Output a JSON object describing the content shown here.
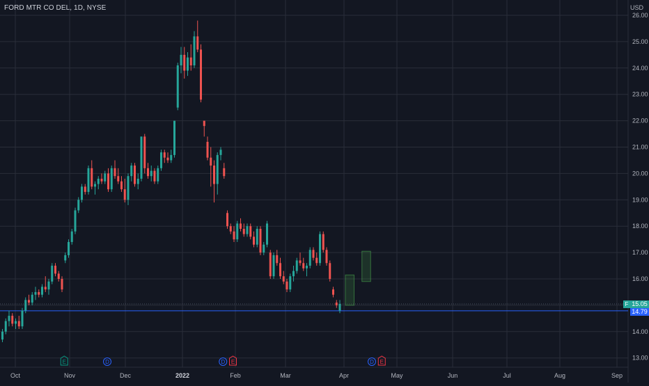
{
  "chart_title": "FORD MTR CO DEL, 1D, NYSE",
  "currency": "USD",
  "price_ticker": "F",
  "last_price": "15.05",
  "horizontal_line_price": "14.79",
  "colors": {
    "background": "#131722",
    "grid": "#2a2e39",
    "up": "#26a69a",
    "down": "#ef5350",
    "blue_line": "#2962ff",
    "earnings_marker": "#089981",
    "dividend_marker": "#2962ff",
    "earnings_marker_red": "#f23645"
  },
  "chart_data": {
    "type": "candlestick",
    "y_axis": {
      "min": 12.8,
      "max": 26.1,
      "ticks": [
        "26.00",
        "25.00",
        "24.00",
        "23.00",
        "22.00",
        "21.00",
        "20.00",
        "19.00",
        "18.00",
        "17.00",
        "16.00",
        "15.00",
        "14.00",
        "13.00"
      ]
    },
    "x_axis": {
      "ticks": [
        "Oct",
        "Nov",
        "Dec",
        "2022",
        "Feb",
        "Mar",
        "Apr",
        "May",
        "Jun",
        "Jul",
        "Aug",
        "Sep"
      ],
      "bold_tick": "2022"
    },
    "candles": [
      [
        13.7,
        14.1,
        13.6,
        14.0
      ],
      [
        14.0,
        14.5,
        13.9,
        14.4
      ],
      [
        14.4,
        14.8,
        14.2,
        14.6
      ],
      [
        14.6,
        14.7,
        14.2,
        14.3
      ],
      [
        14.3,
        14.5,
        14.1,
        14.4
      ],
      [
        14.4,
        14.6,
        14.1,
        14.2
      ],
      [
        14.2,
        14.9,
        14.1,
        14.8
      ],
      [
        14.8,
        15.3,
        14.7,
        15.2
      ],
      [
        15.2,
        15.4,
        15.0,
        15.1
      ],
      [
        15.1,
        15.5,
        15.0,
        15.4
      ],
      [
        15.4,
        15.7,
        15.2,
        15.5
      ],
      [
        15.5,
        15.6,
        15.3,
        15.4
      ],
      [
        15.4,
        15.8,
        15.3,
        15.7
      ],
      [
        15.7,
        16.1,
        15.5,
        15.6
      ],
      [
        15.6,
        16.0,
        15.4,
        15.9
      ],
      [
        15.9,
        16.6,
        15.8,
        16.5
      ],
      [
        16.5,
        16.6,
        16.1,
        16.2
      ],
      [
        16.2,
        16.3,
        15.9,
        16.0
      ],
      [
        16.0,
        16.1,
        15.5,
        15.6
      ],
      [
        16.7,
        17.0,
        16.6,
        16.9
      ],
      [
        16.9,
        17.5,
        16.8,
        17.4
      ],
      [
        17.4,
        17.9,
        17.3,
        17.8
      ],
      [
        17.8,
        18.7,
        17.7,
        18.6
      ],
      [
        18.6,
        19.1,
        18.5,
        19.0
      ],
      [
        19.0,
        19.6,
        18.9,
        19.5
      ],
      [
        19.5,
        19.6,
        19.2,
        19.3
      ],
      [
        19.3,
        20.3,
        19.2,
        20.2
      ],
      [
        20.2,
        20.5,
        19.4,
        19.5
      ],
      [
        19.5,
        19.7,
        19.2,
        19.6
      ],
      [
        19.6,
        19.9,
        19.4,
        19.8
      ],
      [
        19.8,
        20.0,
        19.6,
        19.7
      ],
      [
        19.7,
        20.1,
        19.6,
        20.0
      ],
      [
        20.0,
        20.2,
        19.3,
        19.4
      ],
      [
        19.4,
        20.3,
        19.3,
        20.2
      ],
      [
        20.2,
        20.5,
        19.8,
        19.9
      ],
      [
        19.9,
        20.2,
        19.6,
        19.7
      ],
      [
        19.7,
        19.9,
        19.3,
        19.4
      ],
      [
        19.4,
        19.8,
        18.9,
        19.0
      ],
      [
        19.0,
        20.0,
        18.8,
        19.9
      ],
      [
        19.9,
        20.4,
        19.7,
        20.3
      ],
      [
        20.3,
        20.4,
        19.5,
        19.6
      ],
      [
        19.6,
        20.0,
        19.4,
        19.8
      ],
      [
        19.8,
        21.4,
        19.7,
        21.4
      ],
      [
        21.4,
        21.5,
        20.0,
        20.2
      ],
      [
        20.2,
        20.4,
        19.8,
        19.9
      ],
      [
        19.9,
        20.3,
        19.7,
        20.1
      ],
      [
        20.1,
        20.2,
        19.6,
        19.7
      ],
      [
        19.7,
        20.3,
        19.6,
        20.2
      ],
      [
        20.2,
        20.9,
        20.1,
        20.8
      ],
      [
        20.8,
        20.9,
        20.4,
        20.6
      ],
      [
        20.6,
        20.8,
        20.4,
        20.5
      ],
      [
        20.5,
        20.9,
        20.4,
        20.7
      ],
      [
        20.7,
        22.0,
        20.6,
        22.0
      ],
      [
        22.5,
        24.2,
        22.4,
        24.1
      ],
      [
        24.1,
        24.8,
        23.8,
        24.5
      ],
      [
        24.5,
        24.8,
        23.6,
        23.9
      ],
      [
        23.9,
        24.6,
        23.7,
        24.4
      ],
      [
        24.4,
        24.9,
        23.9,
        24.1
      ],
      [
        24.1,
        25.4,
        24.0,
        25.2
      ],
      [
        25.2,
        25.8,
        24.6,
        24.7
      ],
      [
        24.7,
        24.9,
        22.7,
        22.8
      ],
      [
        22.0,
        22.0,
        21.4,
        21.8
      ],
      [
        21.2,
        21.4,
        20.5,
        20.6
      ],
      [
        20.6,
        21.0,
        19.5,
        20.3
      ],
      [
        20.3,
        20.5,
        18.9,
        19.6
      ],
      [
        19.6,
        20.8,
        19.2,
        20.7
      ],
      [
        20.7,
        21.0,
        20.5,
        20.9
      ],
      [
        20.2,
        20.4,
        19.8,
        19.9
      ],
      [
        18.5,
        18.6,
        17.9,
        18.0
      ],
      [
        18.0,
        18.1,
        17.7,
        17.8
      ],
      [
        17.8,
        18.0,
        17.4,
        17.5
      ],
      [
        17.5,
        18.2,
        17.4,
        18.1
      ],
      [
        18.1,
        18.3,
        17.8,
        17.9
      ],
      [
        17.9,
        18.1,
        17.6,
        17.7
      ],
      [
        17.7,
        18.1,
        17.6,
        18.0
      ],
      [
        18.0,
        18.1,
        17.5,
        17.6
      ],
      [
        17.6,
        17.8,
        17.2,
        17.3
      ],
      [
        17.3,
        18.0,
        17.2,
        17.9
      ],
      [
        17.9,
        18.0,
        16.9,
        17.0
      ],
      [
        17.0,
        17.4,
        16.9,
        17.3
      ],
      [
        17.3,
        18.2,
        17.2,
        18.1
      ],
      [
        17.0,
        17.1,
        16.0,
        16.1
      ],
      [
        16.1,
        17.0,
        16.0,
        16.9
      ],
      [
        16.9,
        17.1,
        16.5,
        16.6
      ],
      [
        16.6,
        16.8,
        16.0,
        16.1
      ],
      [
        16.1,
        16.3,
        15.8,
        15.9
      ],
      [
        15.9,
        16.0,
        15.5,
        15.6
      ],
      [
        15.6,
        16.2,
        15.5,
        16.1
      ],
      [
        16.1,
        16.5,
        15.9,
        16.3
      ],
      [
        16.3,
        16.8,
        16.2,
        16.7
      ],
      [
        16.7,
        17.0,
        16.5,
        16.6
      ],
      [
        16.6,
        16.8,
        16.3,
        16.4
      ],
      [
        16.4,
        16.6,
        16.1,
        16.5
      ],
      [
        16.5,
        17.2,
        16.4,
        17.1
      ],
      [
        17.1,
        17.2,
        16.7,
        16.8
      ],
      [
        16.8,
        17.0,
        16.5,
        16.6
      ],
      [
        16.6,
        17.8,
        16.5,
        17.7
      ],
      [
        17.7,
        17.8,
        17.0,
        17.1
      ],
      [
        17.1,
        17.2,
        16.5,
        16.6
      ],
      [
        16.6,
        16.7,
        15.9,
        16.0
      ],
      [
        15.6,
        15.7,
        15.3,
        15.4
      ],
      [
        15.1,
        15.2,
        14.9,
        15.0
      ],
      [
        14.8,
        15.2,
        14.7,
        15.05
      ]
    ],
    "projection_boxes": [
      {
        "x_from_index": 104,
        "x_to_index": 106,
        "y_low": 15.0,
        "y_high": 16.15
      },
      {
        "x_from_index": 109,
        "x_to_index": 111,
        "y_low": 15.9,
        "y_high": 17.05
      }
    ],
    "event_markers": [
      {
        "label": "E",
        "index": 19,
        "kind": "earnings"
      },
      {
        "label": "D",
        "index": 32,
        "kind": "dividend"
      },
      {
        "label": "D",
        "index": 67,
        "kind": "dividend"
      },
      {
        "label": "E",
        "index": 70,
        "kind": "earnings-red"
      },
      {
        "label": "D",
        "index": 112,
        "kind": "dividend"
      },
      {
        "label": "E",
        "index": 115,
        "kind": "earnings-red"
      }
    ]
  }
}
